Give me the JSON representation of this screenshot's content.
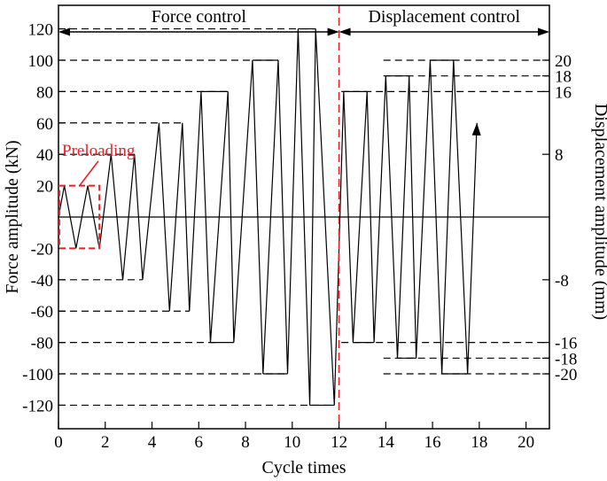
{
  "chart_data": {
    "type": "line",
    "xlabel": "Cycle times",
    "ylabel": "Force amplitude  (kN)",
    "y2label": "Displacement amplitude  (mm)",
    "xlim": [
      0,
      21
    ],
    "ylim": [
      -135,
      135
    ],
    "x_ticks": [
      0,
      2,
      4,
      6,
      8,
      10,
      12,
      14,
      16,
      18,
      20
    ],
    "y_ticks": [
      120,
      100,
      80,
      60,
      40,
      20,
      -20,
      -40,
      -60,
      -80,
      -100,
      -120
    ],
    "y2_ticks": [
      {
        "label": "20",
        "force_equiv": 100
      },
      {
        "label": "18",
        "force_equiv": 90
      },
      {
        "label": "16",
        "force_equiv": 80
      },
      {
        "label": "8",
        "force_equiv": 40
      },
      {
        "label": "-8",
        "force_equiv": -40
      },
      {
        "label": "-16",
        "force_equiv": -80
      },
      {
        "label": "-18",
        "force_equiv": -90
      },
      {
        "label": "-20",
        "force_equiv": -100
      }
    ],
    "sections": [
      {
        "label": "Force control",
        "x_start": 0,
        "x_end": 12
      },
      {
        "label": "Displacement control",
        "x_start": 12,
        "x_end": 21
      }
    ],
    "divider_x": 12,
    "divider_color": "#e8202a",
    "preload": {
      "label": "Preloading",
      "x_range": [
        0,
        1.75
      ],
      "y_range": [
        -20,
        20
      ],
      "color": "#e8202a"
    },
    "left_levels": [
      {
        "y": 120,
        "x_end": 11.0
      },
      {
        "y": 100,
        "x_end": 9.4
      },
      {
        "y": 80,
        "x_end": 7.3
      },
      {
        "y": 60,
        "x_end": 5.3
      },
      {
        "y": 40,
        "x_end": 3.3
      },
      {
        "y": -40,
        "x_end": 3.6
      },
      {
        "y": -60,
        "x_end": 5.6
      },
      {
        "y": -80,
        "x_end": 6.8
      },
      {
        "y": -100,
        "x_end": 9.8
      },
      {
        "y": -120,
        "x_end": 11.8
      }
    ],
    "right_levels": [
      {
        "y": 100,
        "x_start": 13.9
      },
      {
        "y": 90,
        "x_start": 13.9
      },
      {
        "y": 80,
        "x_start": 12.1
      },
      {
        "y": -80,
        "x_start": 12.1
      },
      {
        "y": -90,
        "x_start": 13.9
      },
      {
        "y": -100,
        "x_start": 13.9
      }
    ],
    "load_path": [
      [
        0,
        0
      ],
      [
        0.25,
        20
      ],
      [
        0.75,
        -20
      ],
      [
        1.25,
        20
      ],
      [
        1.75,
        -20
      ],
      [
        2.3,
        40
      ],
      [
        2.8,
        -40
      ],
      [
        3.3,
        40
      ],
      [
        3.6,
        -40
      ],
      [
        4.3,
        60
      ],
      [
        4.8,
        -60
      ],
      [
        5.3,
        60
      ],
      [
        5.6,
        -60
      ],
      [
        6.1,
        80
      ],
      [
        6.8,
        80
      ],
      [
        7.0,
        -80
      ],
      [
        7.3,
        80
      ],
      [
        7.2,
        80
      ],
      [
        8.6,
        -80
      ],
      [
        8.3,
        100
      ],
      [
        8.6,
        -100
      ],
      [
        9.8,
        -100
      ],
      [
        9.4,
        100
      ],
      [
        10.2,
        120
      ],
      [
        10.7,
        -120
      ],
      [
        11.0,
        120
      ],
      [
        11.8,
        -120
      ],
      [
        12.1,
        80
      ]
    ],
    "series": [
      {
        "points": [
          [
            0,
            0
          ],
          [
            0.25,
            20
          ],
          [
            0.75,
            -20
          ],
          [
            1.25,
            20
          ],
          [
            1.75,
            -20
          ],
          [
            2.25,
            40
          ],
          [
            2.75,
            -40
          ],
          [
            3.25,
            40
          ],
          [
            3.6,
            -40
          ],
          [
            4.3,
            60
          ],
          [
            4.75,
            -60
          ],
          [
            5.3,
            60
          ],
          [
            5.6,
            -60
          ],
          [
            6.1,
            80
          ],
          [
            6.5,
            -80
          ],
          [
            7.25,
            80
          ],
          [
            7.5,
            -80
          ],
          [
            8.3,
            100
          ],
          [
            8.75,
            -100
          ],
          [
            9.4,
            100
          ],
          [
            9.8,
            -100
          ],
          [
            10.25,
            120
          ],
          [
            10.75,
            -120
          ],
          [
            11.0,
            120
          ],
          [
            11.8,
            -120
          ],
          [
            12.2,
            80
          ],
          [
            12.6,
            -80
          ],
          [
            13.2,
            80
          ],
          [
            13.5,
            -80
          ],
          [
            14.0,
            90
          ],
          [
            14.5,
            -90
          ],
          [
            15.0,
            90
          ],
          [
            15.3,
            -90
          ],
          [
            15.9,
            100
          ],
          [
            16.4,
            -100
          ],
          [
            16.9,
            100
          ],
          [
            17.5,
            -100
          ],
          [
            17.9,
            60
          ]
        ]
      }
    ],
    "horizontal_segments": [
      {
        "y": 20,
        "x": [
          0.15,
          0.25
        ]
      },
      {
        "y": 80,
        "x": [
          6.1,
          7.25
        ]
      },
      {
        "y": -80,
        "x": [
          6.5,
          7.5
        ]
      },
      {
        "y": 100,
        "x": [
          8.3,
          9.4
        ]
      },
      {
        "y": -100,
        "x": [
          8.75,
          9.8
        ]
      },
      {
        "y": 120,
        "x": [
          10.25,
          11.0
        ]
      },
      {
        "y": -120,
        "x": [
          10.75,
          11.8
        ]
      },
      {
        "y": 80,
        "x": [
          12.2,
          13.2
        ]
      },
      {
        "y": -80,
        "x": [
          12.6,
          13.5
        ]
      },
      {
        "y": 90,
        "x": [
          14.0,
          15.0
        ]
      },
      {
        "y": -90,
        "x": [
          14.5,
          15.3
        ]
      },
      {
        "y": 100,
        "x": [
          15.9,
          16.9
        ]
      },
      {
        "y": -100,
        "x": [
          16.4,
          17.5
        ]
      }
    ],
    "grid": false
  }
}
